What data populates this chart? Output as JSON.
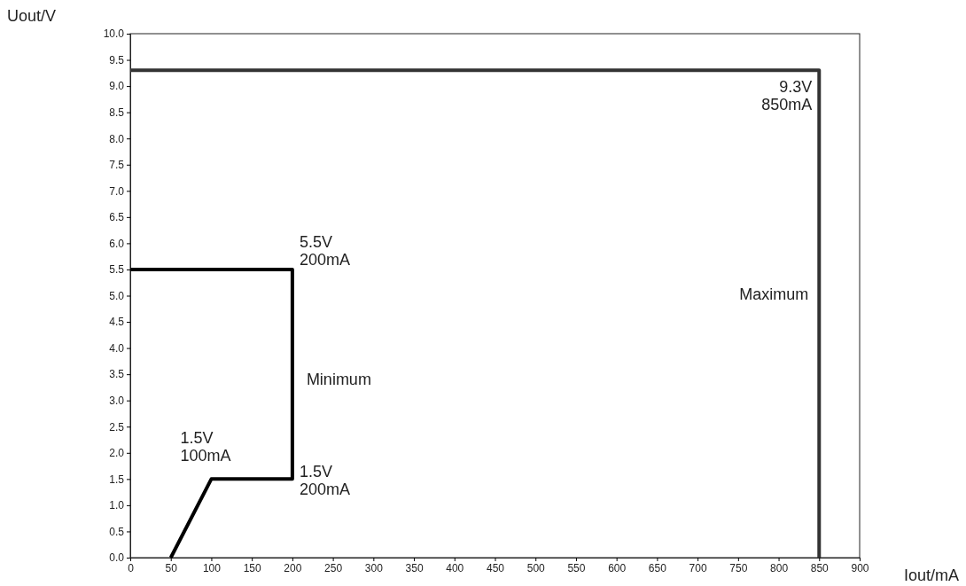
{
  "chart_data": {
    "type": "line",
    "xlabel": "Iout/mA",
    "ylabel": "Uout/V",
    "xlim": [
      0,
      900
    ],
    "xticks": [
      0,
      50,
      100,
      150,
      200,
      250,
      300,
      350,
      400,
      450,
      500,
      550,
      600,
      650,
      700,
      750,
      800,
      850,
      900
    ],
    "ylim": [
      0,
      10
    ],
    "yticks": [
      {
        "value": 0,
        "label": "0.0"
      },
      {
        "value": 0.5,
        "label": "0.5"
      },
      {
        "value": 1,
        "label": "1.0"
      },
      {
        "value": 1.5,
        "label": "1.5"
      },
      {
        "value": 2,
        "label": "2.0"
      },
      {
        "value": 2.5,
        "label": "2.5"
      },
      {
        "value": 3,
        "label": "3.0"
      },
      {
        "value": 3.5,
        "label": "3.5"
      },
      {
        "value": 4,
        "label": "4.0"
      },
      {
        "value": 4.5,
        "label": "4.5"
      },
      {
        "value": 5,
        "label": "5.0"
      },
      {
        "value": 5.5,
        "label": "5.5"
      },
      {
        "value": 6,
        "label": "6.0"
      },
      {
        "value": 6.5,
        "label": "6.5"
      },
      {
        "value": 7,
        "label": "7.0"
      },
      {
        "value": 7.5,
        "label": "7.5"
      },
      {
        "value": 8,
        "label": "8.0"
      },
      {
        "value": 8.5,
        "label": "8.5"
      },
      {
        "value": 9,
        "label": "9.0"
      },
      {
        "value": 9.5,
        "label": "9.5"
      },
      {
        "value": 10,
        "label": "10.0"
      }
    ],
    "series": [
      {
        "name": "Minimum",
        "color": "#000000",
        "x": [
          50,
          100,
          200,
          200,
          0
        ],
        "values": [
          0,
          1.5,
          1.5,
          5.5,
          5.5
        ]
      },
      {
        "name": "Maximum",
        "color": "#333333",
        "x": [
          0,
          850,
          850
        ],
        "values": [
          9.3,
          9.3,
          0
        ]
      }
    ],
    "annotations": [
      {
        "text": "1.5V\n100mA",
        "x": 100,
        "y": 1.5
      },
      {
        "text": "1.5V\n200mA",
        "x": 200,
        "y": 1.5
      },
      {
        "text": "5.5V\n200mA",
        "x": 200,
        "y": 5.5
      },
      {
        "text": "9.3V\n850mA",
        "x": 850,
        "y": 9.3
      }
    ],
    "grid": false,
    "marker": "none",
    "line_style": "solid"
  }
}
